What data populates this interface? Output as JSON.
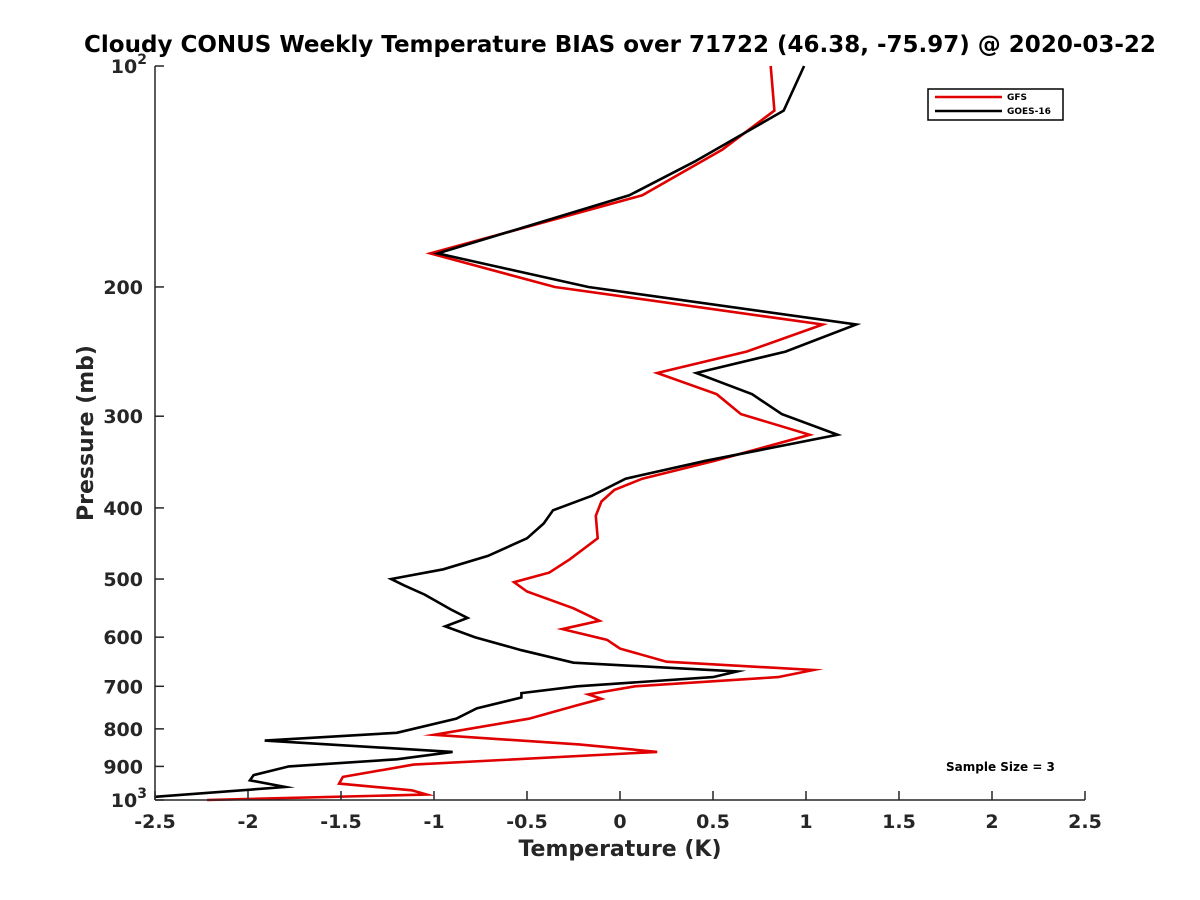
{
  "chart_data": {
    "type": "line",
    "title": "Cloudy CONUS Weekly Temperature BIAS over 71722 (46.38, -75.97) @ 2020-03-22",
    "xlabel": "Temperature (K)",
    "ylabel": "Pressure (mb)",
    "xlim": [
      -2.5,
      2.5
    ],
    "ylim": [
      100,
      1000
    ],
    "yscale": "log",
    "y_reversed": true,
    "x_ticks": [
      -2.5,
      -2,
      -1.5,
      -1,
      -0.5,
      0,
      0.5,
      1,
      1.5,
      2,
      2.5
    ],
    "x_tick_labels": [
      "-2.5",
      "-2",
      "-1.5",
      "-1",
      "-0.5",
      "0",
      "0.5",
      "1",
      "1.5",
      "2",
      "2.5"
    ],
    "y_ticks": [
      200,
      300,
      400,
      500,
      600,
      700,
      800,
      900
    ],
    "y_tick_labels": [
      "200",
      "300",
      "400",
      "500",
      "600",
      "700",
      "800",
      "900"
    ],
    "y_top_label": {
      "base": "10",
      "exp": "2"
    },
    "y_bottom_label": {
      "base": "10",
      "exp": "3"
    },
    "legend_position": "top-right",
    "annotation": "Sample Size = 3",
    "series": [
      {
        "name": "GFS",
        "color": "#e00000",
        "points": [
          [
            0.81,
            100
          ],
          [
            0.83,
            115
          ],
          [
            0.55,
            130
          ],
          [
            0.12,
            150
          ],
          [
            -1.02,
            180
          ],
          [
            -0.35,
            200
          ],
          [
            1.09,
            225
          ],
          [
            0.68,
            245
          ],
          [
            0.2,
            262
          ],
          [
            0.52,
            280
          ],
          [
            0.65,
            298
          ],
          [
            1.02,
            318
          ],
          [
            0.51,
            345
          ],
          [
            0.12,
            365
          ],
          [
            -0.03,
            378
          ],
          [
            -0.1,
            392
          ],
          [
            -0.13,
            410
          ],
          [
            -0.12,
            440
          ],
          [
            -0.27,
            470
          ],
          [
            -0.38,
            490
          ],
          [
            -0.57,
            505
          ],
          [
            -0.5,
            520
          ],
          [
            -0.25,
            548
          ],
          [
            -0.11,
            570
          ],
          [
            -0.31,
            585
          ],
          [
            -0.07,
            605
          ],
          [
            0.0,
            622
          ],
          [
            0.25,
            648
          ],
          [
            1.04,
            665
          ],
          [
            0.85,
            680
          ],
          [
            0.08,
            700
          ],
          [
            -0.17,
            718
          ],
          [
            -0.1,
            728
          ],
          [
            -0.23,
            743
          ],
          [
            -0.49,
            775
          ],
          [
            -1.0,
            815
          ],
          [
            -0.22,
            840
          ],
          [
            0.2,
            860
          ],
          [
            -1.11,
            895
          ],
          [
            -1.49,
            930
          ],
          [
            -1.51,
            950
          ],
          [
            -1.12,
            970
          ],
          [
            -1.04,
            983
          ],
          [
            -2.22,
            1000
          ]
        ]
      },
      {
        "name": "GOES-16",
        "color": "#000000",
        "points": [
          [
            0.99,
            100
          ],
          [
            0.88,
            115
          ],
          [
            0.4,
            135
          ],
          [
            0.05,
            150
          ],
          [
            -0.98,
            180
          ],
          [
            -0.17,
            200
          ],
          [
            1.27,
            225
          ],
          [
            0.89,
            245
          ],
          [
            0.41,
            262
          ],
          [
            0.71,
            280
          ],
          [
            0.87,
            298
          ],
          [
            1.17,
            318
          ],
          [
            0.46,
            345
          ],
          [
            0.03,
            365
          ],
          [
            -0.15,
            385
          ],
          [
            -0.36,
            403
          ],
          [
            -0.41,
            420
          ],
          [
            -0.5,
            440
          ],
          [
            -0.71,
            465
          ],
          [
            -0.95,
            485
          ],
          [
            -1.23,
            500
          ],
          [
            -1.16,
            510
          ],
          [
            -1.05,
            525
          ],
          [
            -0.91,
            550
          ],
          [
            -0.82,
            565
          ],
          [
            -0.94,
            580
          ],
          [
            -0.78,
            600
          ],
          [
            -0.53,
            625
          ],
          [
            -0.25,
            650
          ],
          [
            0.63,
            668
          ],
          [
            0.5,
            680
          ],
          [
            -0.23,
            700
          ],
          [
            -0.53,
            715
          ],
          [
            -0.53,
            725
          ],
          [
            -0.77,
            750
          ],
          [
            -0.88,
            775
          ],
          [
            -1.2,
            810
          ],
          [
            -1.91,
            830
          ],
          [
            -0.9,
            860
          ],
          [
            -1.2,
            880
          ],
          [
            -1.78,
            900
          ],
          [
            -1.97,
            925
          ],
          [
            -1.99,
            940
          ],
          [
            -1.8,
            960
          ],
          [
            -2.5,
            990
          ]
        ]
      }
    ]
  }
}
